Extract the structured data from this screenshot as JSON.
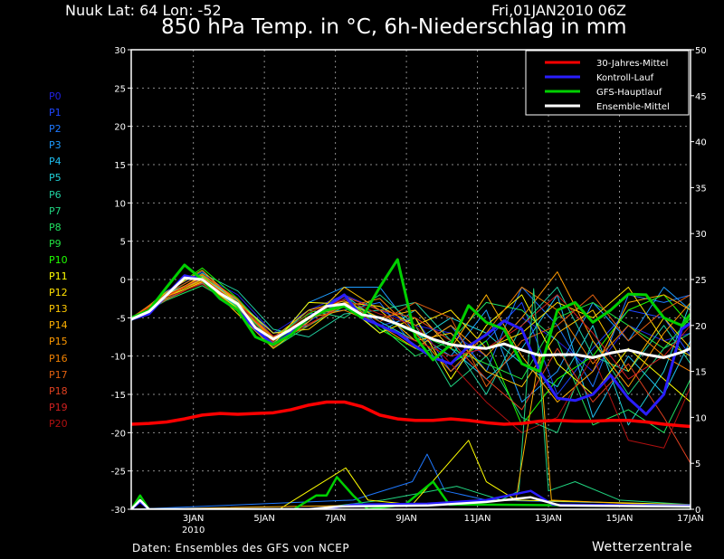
{
  "header": {
    "station": "Nuuk  Lat: 64 Lon: -52",
    "date": "Fri,01JAN2010 06Z",
    "title": "850 hPa Temp. in °C, 6h-Niederschlag in mm"
  },
  "footer": {
    "source": "Daten: Ensembles des GFS von NCEP",
    "brand": "Wetterzentrale"
  },
  "chart_data": {
    "type": "line",
    "title": "850 hPa Temp. in °C, 6h-Niederschlag in mm",
    "x_unit": "hours since 01JAN2010 06Z",
    "xlim": [
      0,
      378
    ],
    "ylim_left": [
      -30,
      30
    ],
    "ylim_right": [
      0,
      50
    ],
    "ylabel_left": "°C",
    "ylabel_right": "mm",
    "grid": true,
    "legend_placement": "top-right",
    "left_ticks": [
      "30",
      "25",
      "20",
      "15",
      "10",
      "5",
      "0",
      "-5",
      "-10",
      "-15",
      "-20",
      "-25",
      "-30"
    ],
    "left_tick_values": [
      30,
      25,
      20,
      15,
      10,
      5,
      0,
      -5,
      -10,
      -15,
      -20,
      -25,
      -30
    ],
    "right_ticks": [
      "50",
      "45",
      "40",
      "35",
      "30",
      "25",
      "20",
      "15",
      "10",
      "5",
      "0"
    ],
    "right_tick_values": [
      50,
      45,
      40,
      35,
      30,
      25,
      20,
      15,
      10,
      5,
      0
    ],
    "x_ticks": [
      {
        "label": "3JAN",
        "sub": "2010",
        "hour": 42
      },
      {
        "label": "5JAN",
        "sub": "",
        "hour": 90
      },
      {
        "label": "7JAN",
        "sub": "",
        "hour": 138
      },
      {
        "label": "9JAN",
        "sub": "",
        "hour": 186
      },
      {
        "label": "11JAN",
        "sub": "",
        "hour": 234
      },
      {
        "label": "13JAN",
        "sub": "",
        "hour": 282
      },
      {
        "label": "15JAN",
        "sub": "",
        "hour": 330
      },
      {
        "label": "17JAN",
        "sub": "",
        "hour": 378
      }
    ],
    "hours_12h": [
      0,
      12,
      24,
      36,
      48,
      60,
      72,
      84,
      96,
      108,
      120,
      132,
      144,
      156,
      168,
      180,
      192,
      204,
      216,
      228,
      240,
      252,
      264,
      276,
      288,
      300,
      312,
      324,
      336,
      348,
      360,
      372,
      378
    ],
    "hours_24h": [
      0,
      24,
      48,
      72,
      96,
      120,
      144,
      168,
      192,
      216,
      240,
      264,
      288,
      312,
      336,
      360,
      378
    ],
    "legend": [
      {
        "key": "climate",
        "label": "30-Jahres-Mittel",
        "color": "#ff0000"
      },
      {
        "key": "control",
        "label": "Kontroll-Lauf",
        "color": "#2a1eff"
      },
      {
        "key": "gfs",
        "label": "GFS-Hauptlauf",
        "color": "#00d000"
      },
      {
        "key": "mean",
        "label": "Ensemble-Mittel",
        "color": "#ffffff"
      }
    ],
    "temperature": {
      "climate": [
        -18.9,
        -18.8,
        -18.6,
        -18.2,
        -17.7,
        -17.5,
        -17.6,
        -17.5,
        -17.4,
        -17.0,
        -16.4,
        -16.0,
        -16.0,
        -16.6,
        -17.7,
        -18.2,
        -18.4,
        -18.4,
        -18.2,
        -18.4,
        -18.7,
        -18.9,
        -18.8,
        -18.5,
        -18.4,
        -18.5,
        -18.5,
        -18.4,
        -18.4,
        -18.6,
        -18.9,
        -19.1,
        -19.2
      ],
      "control": [
        -5.2,
        -4.5,
        -2,
        0.5,
        0,
        -2.5,
        -4,
        -6.5,
        -8.5,
        -7,
        -5,
        -3.5,
        -2,
        -5,
        -6,
        -7,
        -8.7,
        -10.2,
        -11,
        -8.7,
        -7.2,
        -5.4,
        -6.5,
        -12,
        -15.5,
        -15.8,
        -15,
        -12.5,
        -15.5,
        -17.6,
        -15,
        -6.5,
        -5.7
      ],
      "gfs": [
        -5,
        -4,
        -1,
        1.9,
        0,
        -2.5,
        -4,
        -7.5,
        -8.5,
        -7.2,
        -5,
        -4,
        -3.5,
        -5,
        -1,
        2.6,
        -7.5,
        -10.5,
        -8.5,
        -3.4,
        -5.6,
        -6.5,
        -11,
        -12,
        -4,
        -3,
        -5.6,
        -4,
        -1.9,
        -2,
        -5,
        -6,
        -4.5
      ],
      "mean": [
        -5.2,
        -4.2,
        -2,
        0.2,
        0,
        -1.8,
        -3.2,
        -6.3,
        -7.8,
        -6.5,
        -5,
        -3.5,
        -3.2,
        -4.6,
        -5,
        -5.8,
        -6.8,
        -7.8,
        -8.5,
        -8.8,
        -9,
        -8.4,
        -9.2,
        -9.9,
        -9.8,
        -9.8,
        -10.2,
        -9.6,
        -9.2,
        -9.8,
        -10.2,
        -9.5,
        -9
      ],
      "members": [
        {
          "name": "P0",
          "color": "#2020e0",
          "values": [
            -5,
            -2.5,
            0.5,
            -2,
            -7,
            -4,
            -2,
            -4,
            -6,
            -7,
            -10,
            -5,
            -8,
            -12,
            -6,
            -8,
            -7
          ]
        },
        {
          "name": "P1",
          "color": "#1e46ff",
          "values": [
            -5.3,
            -1.5,
            1,
            -3.5,
            -8,
            -5.5,
            -2.5,
            -6,
            -5,
            -12,
            -8,
            -3,
            -15,
            -9,
            -4,
            -5,
            -10
          ]
        },
        {
          "name": "P2",
          "color": "#1e78ff",
          "values": [
            -5,
            -2,
            0.2,
            -2.5,
            -7.5,
            -4.5,
            -4,
            -3,
            -9,
            -6,
            -12,
            -1,
            -6,
            -14,
            -2,
            -3,
            -2
          ]
        },
        {
          "name": "P3",
          "color": "#1e9cff",
          "values": [
            -5.2,
            -1.8,
            0,
            -4,
            -8.5,
            -3,
            -1,
            -1,
            -7,
            -10,
            -4,
            -16,
            -12,
            -3,
            -8,
            -1,
            -4
          ]
        },
        {
          "name": "P4",
          "color": "#1ebef0",
          "values": [
            -5.1,
            -2.2,
            0.4,
            -2.8,
            -7,
            -6,
            -3,
            -7,
            -4,
            -9,
            -13,
            -9,
            -2,
            -18,
            -10,
            -15,
            -8
          ]
        },
        {
          "name": "P5",
          "color": "#20d0d8",
          "values": [
            -5.4,
            -2.4,
            -0.5,
            -3.5,
            -8,
            -5,
            -2,
            -5.5,
            -8,
            -5,
            -7,
            -11,
            -14,
            -6,
            -19,
            -12,
            -3
          ]
        },
        {
          "name": "P6",
          "color": "#20d0a0",
          "values": [
            -5.2,
            -1.9,
            0.8,
            -1.5,
            -6.5,
            -7.5,
            -4.5,
            -4,
            -3,
            -8,
            -15,
            -6,
            -1,
            -10,
            -12,
            -6,
            -11
          ]
        },
        {
          "name": "P7",
          "color": "#20d480",
          "values": [
            -5,
            -2.1,
            0,
            -3,
            -8,
            -4,
            -5,
            -2,
            -6,
            -14,
            -10,
            -18,
            -20,
            -8,
            -15,
            -9,
            -7
          ]
        },
        {
          "name": "P8",
          "color": "#20e060",
          "values": [
            -5.3,
            -2.7,
            -0.8,
            -3.6,
            -9,
            -6,
            -3.5,
            -6,
            -10,
            -8,
            -3,
            -4,
            -8,
            -19,
            -17,
            -20,
            -13
          ]
        },
        {
          "name": "P9",
          "color": "#20e040",
          "values": [
            -5.2,
            -2.5,
            0.5,
            -3.3,
            -8.2,
            -5,
            -3,
            -5,
            -7,
            -9,
            -11,
            -13,
            -5,
            -3,
            -6,
            -9,
            -5
          ]
        },
        {
          "name": "P10",
          "color": "#20ff00",
          "values": [
            -5.1,
            -1.7,
            1.5,
            -2.5,
            -7.7,
            -4.5,
            -2,
            -6.5,
            -9,
            -11,
            -8,
            -19,
            -13,
            -10,
            -4,
            -2,
            -6
          ]
        },
        {
          "name": "P11",
          "color": "#ffff00",
          "values": [
            -5.2,
            -2.3,
            -0.3,
            -3.8,
            -8.5,
            -3,
            -3.2,
            -7,
            -5,
            -13,
            -6,
            -2,
            -11,
            -15,
            -9,
            -13,
            -16
          ]
        },
        {
          "name": "P12",
          "color": "#ffe000",
          "values": [
            -5,
            -2,
            0.3,
            -3,
            -7,
            -6.5,
            -3,
            -3.5,
            -6,
            -4,
            -9,
            -7,
            -3,
            -5,
            -1,
            -8,
            -10
          ]
        },
        {
          "name": "P13",
          "color": "#ffc800",
          "values": [
            -5.3,
            -2.2,
            0,
            -4.5,
            -9,
            -5.5,
            -1,
            -4,
            -8,
            -7,
            -12,
            -14,
            -7,
            -4,
            -12,
            -5,
            -9
          ]
        },
        {
          "name": "P14",
          "color": "#ffb000",
          "values": [
            -5.2,
            -1.6,
            1.2,
            -3.1,
            -7.6,
            -4,
            -2.8,
            -5,
            -4,
            -9,
            -2,
            -10,
            -16,
            -12,
            -3,
            -2,
            -4
          ]
        },
        {
          "name": "P15",
          "color": "#ff9a00",
          "values": [
            -5.1,
            -2.4,
            0.6,
            -2.7,
            -8,
            -5,
            -4,
            -6,
            -9,
            -6,
            -10,
            -5,
            1,
            -8,
            -14,
            -7,
            -3
          ]
        },
        {
          "name": "P16",
          "color": "#f08000",
          "values": [
            -5.2,
            -2,
            -0.2,
            -3.4,
            -7.8,
            -4.8,
            -3.6,
            -2.5,
            -7,
            -12,
            -7,
            -1,
            -4,
            -11,
            -6,
            -10,
            -12
          ]
        },
        {
          "name": "P17",
          "color": "#e06010",
          "values": [
            -5,
            -1.8,
            0.7,
            -2.6,
            -8.3,
            -6,
            -3,
            -5.5,
            -3,
            -5,
            -14,
            -8,
            -6,
            -2,
            -8,
            -4,
            -2
          ]
        },
        {
          "name": "P18",
          "color": "#e04020",
          "values": [
            -5.3,
            -2.6,
            -0.4,
            -4,
            -8.8,
            -5.2,
            -2.2,
            -4,
            -5,
            -8,
            -13,
            -17,
            -9,
            -16,
            -11,
            -18,
            -24
          ]
        },
        {
          "name": "P19",
          "color": "#d02020",
          "values": [
            -5.2,
            -2.1,
            0.2,
            -3.2,
            -7.4,
            -5.8,
            -3.4,
            -6,
            -8,
            -10,
            -9,
            -6,
            -2,
            -7,
            -13,
            -10,
            -6
          ]
        },
        {
          "name": "P20",
          "color": "#b01010",
          "values": [
            -5.1,
            -2.3,
            -0.6,
            -3.9,
            -8.1,
            -4.3,
            -2.6,
            -4.5,
            -6,
            -11,
            -16,
            -20,
            -18,
            -10,
            -21,
            -22,
            -14
          ]
        }
      ]
    },
    "precipitation": [
      {
        "name": "P2",
        "color": "#1e78ff",
        "points": [
          [
            0,
            0
          ],
          [
            150,
            1
          ],
          [
            190,
            3
          ],
          [
            200,
            6
          ],
          [
            212,
            2
          ],
          [
            240,
            1
          ],
          [
            378,
            0.5
          ]
        ]
      },
      {
        "name": "P7",
        "color": "#20d480",
        "points": [
          [
            0,
            0
          ],
          [
            6,
            1
          ],
          [
            12,
            0
          ],
          [
            120,
            0
          ],
          [
            170,
            1
          ],
          [
            220,
            2.5
          ],
          [
            250,
            1
          ],
          [
            262,
            2
          ],
          [
            272,
            24
          ],
          [
            282,
            2
          ],
          [
            300,
            3
          ],
          [
            330,
            1
          ],
          [
            378,
            0.5
          ]
        ]
      },
      {
        "name": "P11",
        "color": "#ffff00",
        "points": [
          [
            0,
            0
          ],
          [
            100,
            0
          ],
          [
            120,
            2
          ],
          [
            145,
            4.5
          ],
          [
            160,
            1
          ],
          [
            190,
            0.5
          ],
          [
            228,
            7.5
          ],
          [
            240,
            3
          ],
          [
            260,
            1
          ],
          [
            378,
            0.5
          ]
        ]
      },
      {
        "name": "P14",
        "color": "#ffb000",
        "points": [
          [
            0,
            0
          ],
          [
            180,
            0.5
          ],
          [
            260,
            1
          ],
          [
            276,
            17
          ],
          [
            284,
            1
          ],
          [
            378,
            0.3
          ]
        ]
      },
      {
        "name": "gfs",
        "color": "#00d000",
        "points": [
          [
            0,
            0
          ],
          [
            6,
            1.5
          ],
          [
            12,
            0
          ],
          [
            110,
            0
          ],
          [
            125,
            1.5
          ],
          [
            132,
            1.5
          ],
          [
            139,
            3.5
          ],
          [
            150,
            1.5
          ],
          [
            160,
            0
          ],
          [
            185,
            0.5
          ],
          [
            204,
            3
          ],
          [
            215,
            0.5
          ],
          [
            240,
            0.5
          ],
          [
            378,
            0.3
          ]
        ]
      },
      {
        "name": "control",
        "color": "#2a1eff",
        "points": [
          [
            0,
            0
          ],
          [
            6,
            0.8
          ],
          [
            12,
            0
          ],
          [
            130,
            0
          ],
          [
            150,
            0.5
          ],
          [
            200,
            0.6
          ],
          [
            240,
            1
          ],
          [
            270,
            2
          ],
          [
            285,
            0.5
          ],
          [
            378,
            0.4
          ]
        ]
      },
      {
        "name": "mean",
        "color": "#ffffff",
        "points": [
          [
            0,
            0
          ],
          [
            6,
            1
          ],
          [
            12,
            0
          ],
          [
            120,
            0
          ],
          [
            140,
            0.3
          ],
          [
            200,
            0.4
          ],
          [
            240,
            0.8
          ],
          [
            270,
            1.3
          ],
          [
            290,
            0.4
          ],
          [
            378,
            0.3
          ]
        ]
      }
    ]
  }
}
